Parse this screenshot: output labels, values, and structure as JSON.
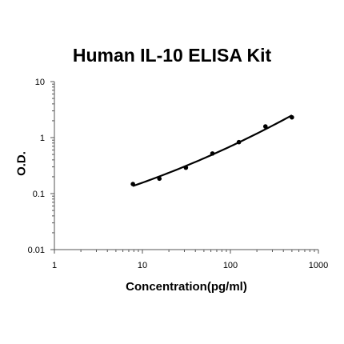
{
  "chart_data": {
    "type": "scatter",
    "title": "Human IL-10 ELISA Kit",
    "xlabel": "Concentration(pg/ml)",
    "ylabel": "O.D.",
    "x_scale": "log",
    "y_scale": "log",
    "xlim": [
      1,
      1000
    ],
    "ylim": [
      0.01,
      10
    ],
    "x_ticks": [
      "1",
      "10",
      "100",
      "1000"
    ],
    "y_ticks": [
      "0.01",
      "0.1",
      "1",
      "10"
    ],
    "grid": false,
    "legend": "none",
    "fit_line": true,
    "series": [
      {
        "x": [
          7.8,
          15.6,
          31.2,
          62.5,
          125,
          250,
          500
        ],
        "y": [
          0.148,
          0.185,
          0.29,
          0.52,
          0.83,
          1.58,
          2.3
        ]
      }
    ],
    "colors": {
      "line": "#000000",
      "marker": "#000000"
    }
  }
}
